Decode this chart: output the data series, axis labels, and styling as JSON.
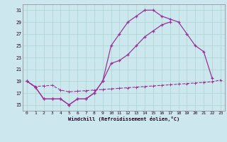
{
  "xlabel": "Windchill (Refroidissement éolien,°C)",
  "bg_color": "#cce8ee",
  "grid_color": "#aad4cc",
  "line_color": "#993399",
  "xlim": [
    -0.5,
    23.5
  ],
  "ylim": [
    14.0,
    32.0
  ],
  "xticks": [
    0,
    1,
    2,
    3,
    4,
    5,
    6,
    7,
    8,
    9,
    10,
    11,
    12,
    13,
    14,
    15,
    16,
    17,
    18,
    19,
    20,
    21,
    22,
    23
  ],
  "yticks": [
    15,
    17,
    19,
    21,
    23,
    25,
    27,
    29,
    31
  ],
  "line1_x": [
    0,
    1,
    2,
    3,
    4,
    5,
    6,
    7,
    8,
    9,
    10,
    11,
    12,
    13,
    14,
    15,
    16,
    17,
    18,
    19,
    20,
    21,
    22
  ],
  "line1_y": [
    19,
    18,
    16,
    16,
    16,
    15,
    16,
    16,
    17,
    19,
    25,
    27,
    29,
    30,
    31,
    31,
    30,
    29.5,
    29,
    27,
    25,
    24,
    19.5
  ],
  "line2_x": [
    0,
    1,
    2,
    3,
    4,
    5,
    6,
    7,
    8,
    9,
    10,
    11,
    12,
    13,
    14,
    15,
    16,
    17
  ],
  "line2_y": [
    19,
    18,
    16,
    16,
    16,
    15,
    16,
    16,
    17,
    19,
    22,
    22.5,
    23.5,
    25,
    26.5,
    27.5,
    28.5,
    29
  ],
  "line3_x": [
    0,
    1,
    2,
    3,
    4,
    5,
    6,
    7,
    8,
    9,
    10,
    11,
    12,
    13,
    14,
    15,
    16,
    17,
    18,
    19,
    20,
    21,
    22,
    23
  ],
  "line3_y": [
    19,
    18.1,
    18.2,
    18.3,
    17.5,
    17.2,
    17.3,
    17.4,
    17.5,
    17.6,
    17.7,
    17.8,
    17.9,
    18.0,
    18.1,
    18.2,
    18.3,
    18.4,
    18.5,
    18.6,
    18.7,
    18.8,
    18.9,
    19.2
  ]
}
